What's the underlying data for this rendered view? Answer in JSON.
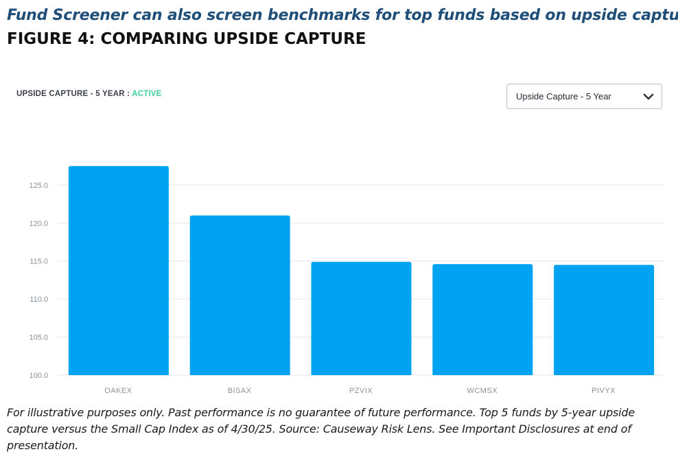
{
  "header": {
    "headline": "Fund Screener can also screen benchmarks for top funds based on upside capture.",
    "figure_title": "FIGURE 4: COMPARING UPSIDE CAPTURE"
  },
  "chart_header": {
    "label_prefix": "UPSIDE CAPTURE - 5 YEAR : ",
    "label_status": "ACTIVE",
    "status_color": "#3ecf9a"
  },
  "dropdown": {
    "selected": "Upside Capture - 5 Year",
    "icon": "chevron-down-icon"
  },
  "chart_data": {
    "type": "bar",
    "categories": [
      "OAKEX",
      "BISAX",
      "PZVIX",
      "WCMSX",
      "PIVYX"
    ],
    "values": [
      127.5,
      121.0,
      114.9,
      114.6,
      114.5
    ],
    "yticks": [
      "100.0",
      "105.0",
      "110.0",
      "115.0",
      "120.0",
      "125.0"
    ],
    "ylim": [
      100,
      129.5
    ],
    "bar_color": "#00a3f1",
    "grid": true
  },
  "footnote": "For illustrative purposes only. Past performance is no guarantee of future performance. Top 5 funds by 5-year upside capture versus the Small Cap Index as of 4/30/25. Source: Causeway Risk Lens. See Important Disclosures at end of presentation."
}
